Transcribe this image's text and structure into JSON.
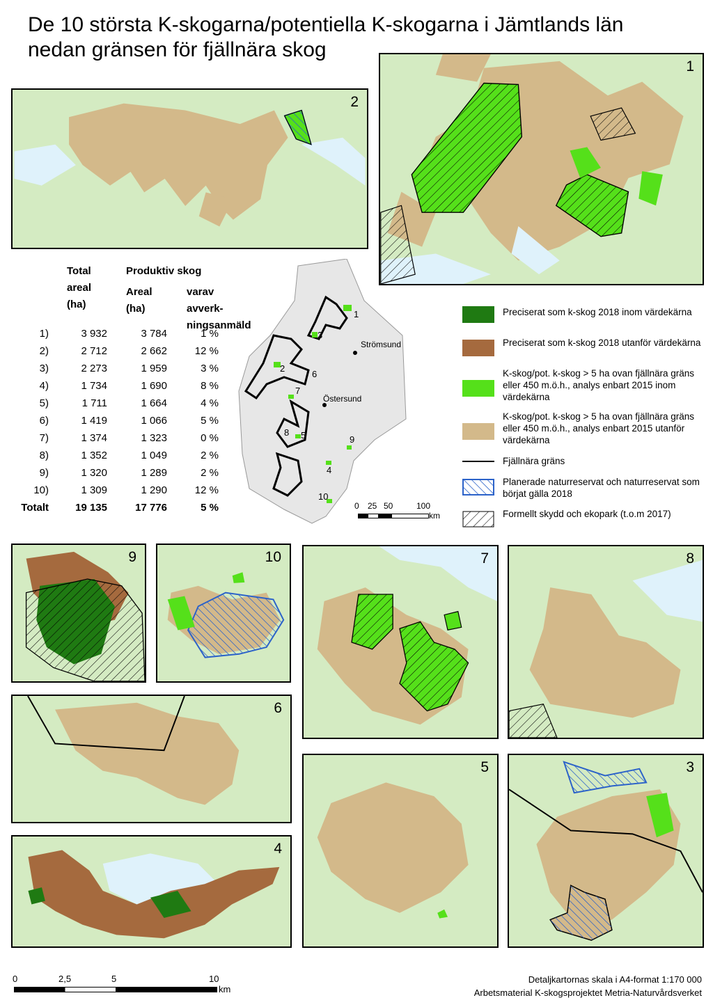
{
  "title": {
    "line1": "De 10 största K-skogarna/potentiella K-skogarna i Jämtlands län",
    "line2": "nedan gränsen för fjällnära skog"
  },
  "stats": {
    "header_total_1": "Total",
    "header_total_2": "areal",
    "header_total_3": "(ha)",
    "header_prod": "Produktiv skog",
    "header_areal_1": "Areal",
    "header_areal_2": "(ha)",
    "header_avv_1": "varav avverk-",
    "header_avv_2": "ningsanmäld",
    "rows": [
      {
        "id": "1)",
        "total": "3 932",
        "areal": "3 784",
        "pct": "1 %"
      },
      {
        "id": "2)",
        "total": "2 712",
        "areal": "2 662",
        "pct": "12 %"
      },
      {
        "id": "3)",
        "total": "2 273",
        "areal": "1 959",
        "pct": "3 %"
      },
      {
        "id": "4)",
        "total": "1 734",
        "areal": "1 690",
        "pct": "8 %"
      },
      {
        "id": "5)",
        "total": "1 711",
        "areal": "1 664",
        "pct": "4 %"
      },
      {
        "id": "6)",
        "total": "1 419",
        "areal": "1 066",
        "pct": "5 %"
      },
      {
        "id": "7)",
        "total": "1 374",
        "areal": "1 323",
        "pct": "0 %"
      },
      {
        "id": "8)",
        "total": "1 352",
        "areal": "1 049",
        "pct": "2 %"
      },
      {
        "id": "9)",
        "total": "1 320",
        "areal": "1 289",
        "pct": "2 %"
      },
      {
        "id": "10)",
        "total": "1 309",
        "areal": "1 290",
        "pct": "12 %"
      }
    ],
    "total": {
      "id": "Totalt",
      "total": "19 135",
      "areal": "17 776",
      "pct": "5 %"
    }
  },
  "overview": {
    "towns": [
      "Strömsund",
      "Östersund"
    ],
    "numbers": [
      "1",
      "2",
      "3",
      "4",
      "5",
      "6",
      "7",
      "8",
      "9",
      "10"
    ],
    "scale_labels": [
      "0",
      "25",
      "50",
      "100"
    ],
    "scale_unit": "km"
  },
  "legend": {
    "items": [
      {
        "label": "Preciserat som k-skog 2018 inom värdekärna",
        "color": "#1f7a12"
      },
      {
        "label": "Preciserat som k-skog 2018 utanför värdekärna",
        "color": "#a56a3e"
      },
      {
        "label": "K-skog/pot. k-skog > 5 ha ovan fjällnära gräns eller 450 m.ö.h., analys enbart 2015 inom värdekärna",
        "color": "#55e01a"
      },
      {
        "label": "K-skog/pot. k-skog > 5 ha ovan fjällnära gräns eller 450 m.ö.h., analys enbart 2015 utanför värdekärna",
        "color": "#d3b98a"
      },
      {
        "label": "Fjällnära gräns",
        "color": "#000000"
      },
      {
        "label": "Planerade naturreservat och naturreservat som börjat gälla 2018",
        "color": "#2b62c9"
      },
      {
        "label": "Formellt skydd och ekopark (t.o.m 2017)",
        "color": "#000000"
      }
    ]
  },
  "panels": {
    "p1": "1",
    "p2": "2",
    "p3": "3",
    "p4": "4",
    "p5": "5",
    "p6": "6",
    "p7": "7",
    "p8": "8",
    "p9": "9",
    "p10": "10"
  },
  "bottom_scale": {
    "labels": [
      "0",
      "2,5",
      "5",
      "10"
    ],
    "unit": "km"
  },
  "credits": {
    "line1": "Detaljkartornas skala i A4-format 1:170 000",
    "line2": "Arbetsmaterial K-skogsprojektet Metria-Naturvårdsverket"
  }
}
